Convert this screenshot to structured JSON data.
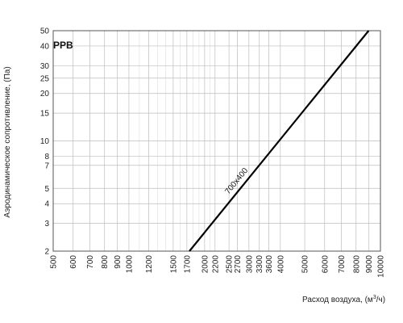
{
  "chart_data": {
    "type": "line",
    "title": "PPB",
    "xlabel": "Расход воздуха, (м",
    "xlabel_sup": "3",
    "xlabel_end": "/ч)",
    "ylabel": "Аэродинамическое сопротивление, (Па)",
    "x_scale": "log",
    "y_scale": "log",
    "xlim": [
      500,
      10000
    ],
    "ylim": [
      2,
      50
    ],
    "x_ticks": [
      500,
      600,
      700,
      800,
      900,
      1000,
      1200,
      1500,
      1700,
      2000,
      2200,
      2500,
      2700,
      3000,
      3300,
      3600,
      4000,
      5000,
      6000,
      7000,
      8000,
      9000,
      10000
    ],
    "y_ticks": [
      2,
      3,
      4,
      5,
      7,
      8,
      10,
      15,
      20,
      25,
      30,
      40,
      50
    ],
    "x_minor_grid": [
      1100,
      1300,
      1400,
      1600,
      1800,
      1900,
      2100
    ],
    "grid": true,
    "series": [
      {
        "name": "700x400",
        "x": [
          1740,
          8980
        ],
        "y": [
          2,
          50
        ]
      }
    ]
  }
}
